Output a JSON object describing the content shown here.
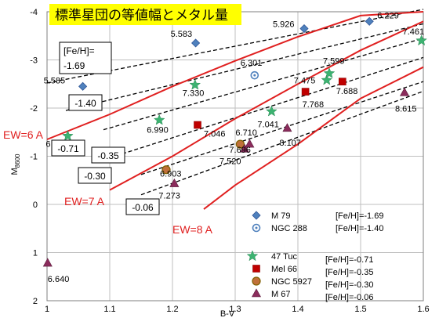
{
  "chart_data": {
    "type": "scatter",
    "title": "標準星団の等値幅とメタル量",
    "xlabel": "B-V",
    "ylabel_main": "M",
    "ylabel_sub": "8600",
    "xlim": [
      1.0,
      1.6
    ],
    "ylim": [
      2,
      -4
    ],
    "x_ticks": [
      "1",
      "1.1",
      "1.2",
      "1.3",
      "1.4",
      "1.5",
      "1.6"
    ],
    "y_ticks": [
      "-4",
      "-3",
      "-2",
      "-1",
      "0",
      "1",
      "2"
    ],
    "series": [
      {
        "name": "M 79",
        "feh": "[Fe/H]=-1.69",
        "marker": "diamond",
        "color": "#4f81bd",
        "points": [
          {
            "x": 1.057,
            "y": -2.45,
            "label": "5.585"
          },
          {
            "x": 1.237,
            "y": -3.35,
            "label": "5.583"
          },
          {
            "x": 1.41,
            "y": -3.65,
            "label": "5.926"
          },
          {
            "x": 1.514,
            "y": -3.8,
            "label": "6.229"
          }
        ]
      },
      {
        "name": "NGC 288",
        "feh": "[Fe/H]=-1.40",
        "marker": "circle-dot",
        "color": "#4f81bd",
        "points": [
          {
            "x": 1.331,
            "y": -2.68,
            "label": "6.301"
          }
        ]
      },
      {
        "name": "47 Tuc",
        "feh": "[Fe/H]=-0.71",
        "marker": "star",
        "color": "#3cb371",
        "points": [
          {
            "x": 1.033,
            "y": -1.42,
            "label": "6.099"
          },
          {
            "x": 1.179,
            "y": -1.75,
            "label": "6.990"
          },
          {
            "x": 1.236,
            "y": -2.48,
            "label": "7.330"
          },
          {
            "x": 1.358,
            "y": -1.93,
            "label": "7.041"
          },
          {
            "x": 1.446,
            "y": -2.58,
            "label": "7.475"
          },
          {
            "x": 1.45,
            "y": -2.72,
            "label": "7.599"
          },
          {
            "x": 1.597,
            "y": -3.4,
            "label": "7.461"
          }
        ]
      },
      {
        "name": "Mel 66",
        "feh": "[Fe/H]=-0.35",
        "marker": "square",
        "color": "#c00000",
        "points": [
          {
            "x": 1.24,
            "y": -1.65,
            "label": "7.046"
          },
          {
            "x": 1.412,
            "y": -2.34,
            "label": "7.768"
          },
          {
            "x": 1.471,
            "y": -2.55,
            "label": "7.688"
          }
        ]
      },
      {
        "name": "NGC 5927",
        "feh": "[Fe/H]=-0.30",
        "marker": "circle",
        "color": "#c0703a",
        "points": [
          {
            "x": 1.19,
            "y": -0.72,
            "label": "6.903"
          },
          {
            "x": 1.308,
            "y": -1.25,
            "label": "6.710"
          }
        ]
      },
      {
        "name": "M 67",
        "feh": "[Fe/H]=-0.06",
        "marker": "triangle",
        "color": "#8b2c5c",
        "points": [
          {
            "x": 1.001,
            "y": 1.22,
            "label": "6.640"
          },
          {
            "x": 1.203,
            "y": -0.43,
            "label": "7.273"
          },
          {
            "x": 1.315,
            "y": -1.15,
            "label": "7.520"
          },
          {
            "x": 1.323,
            "y": -1.25,
            "label": "7.696"
          },
          {
            "x": 1.383,
            "y": -1.58,
            "label": "8.107"
          },
          {
            "x": 1.57,
            "y": -2.32,
            "label": "8.615"
          }
        ]
      }
    ],
    "ew_curves": [
      {
        "label": "EW=6 A",
        "points": [
          [
            1.0,
            -1.35
          ],
          [
            1.1,
            -1.87
          ],
          [
            1.2,
            -2.45
          ],
          [
            1.3,
            -2.98
          ],
          [
            1.4,
            -3.48
          ],
          [
            1.5,
            -3.92
          ],
          [
            1.6,
            -4.0
          ]
        ]
      },
      {
        "label": "EW=7 A",
        "points": [
          [
            1.1,
            -0.3
          ],
          [
            1.2,
            -1.0
          ],
          [
            1.3,
            -1.78
          ],
          [
            1.4,
            -2.5
          ],
          [
            1.5,
            -3.2
          ],
          [
            1.6,
            -3.8
          ]
        ]
      },
      {
        "label": "EW=8 A",
        "points": [
          [
            1.25,
            0.1
          ],
          [
            1.3,
            -0.4
          ],
          [
            1.4,
            -1.25
          ],
          [
            1.5,
            -2.2
          ],
          [
            1.6,
            -2.85
          ]
        ]
      }
    ],
    "feh_lines": [
      {
        "label": "-1.69",
        "points": [
          [
            1.0,
            -2.52
          ],
          [
            1.6,
            -4.05
          ]
        ]
      },
      {
        "label": "-1.40",
        "points": [
          [
            1.03,
            -1.95
          ],
          [
            1.6,
            -3.75
          ]
        ]
      },
      {
        "label": "-0.71",
        "points": [
          [
            1.09,
            -1.55
          ],
          [
            1.6,
            -3.45
          ]
        ]
      },
      {
        "label": "-0.35",
        "points": [
          [
            1.12,
            -1.05
          ],
          [
            1.6,
            -3.05
          ]
        ]
      },
      {
        "label": "-0.30",
        "points": [
          [
            1.15,
            -0.62
          ],
          [
            1.6,
            -2.55
          ]
        ]
      },
      {
        "label": "-0.06",
        "points": [
          [
            1.15,
            -0.2
          ],
          [
            1.6,
            -2.35
          ]
        ]
      }
    ],
    "feh_box_header": "[Fe/H]="
  }
}
